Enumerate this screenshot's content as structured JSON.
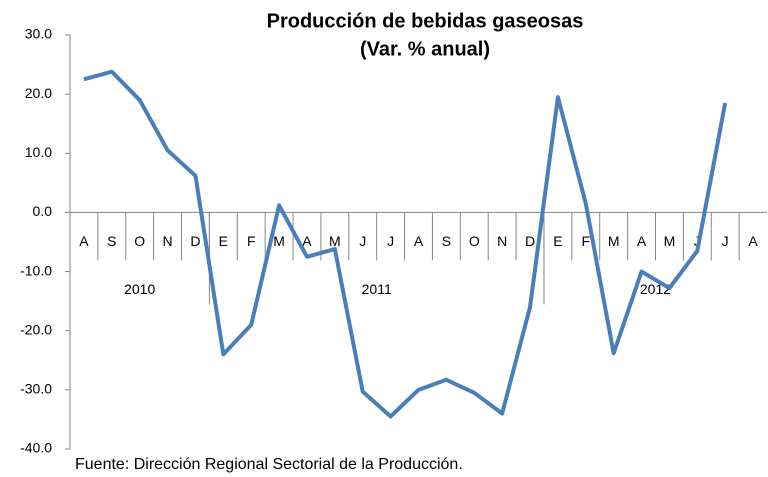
{
  "chart_data": {
    "type": "line",
    "title": [
      "Producción de bebidas gaseosas",
      "(Var. % anual)"
    ],
    "categories": [
      "A",
      "S",
      "O",
      "N",
      "D",
      "E",
      "F",
      "M",
      "A",
      "M",
      "J",
      "J",
      "A",
      "S",
      "O",
      "N",
      "D",
      "E",
      "F",
      "M",
      "A",
      "M",
      "J",
      "J",
      "A"
    ],
    "year_groups": [
      {
        "label": "2010",
        "count": 5
      },
      {
        "label": "2011",
        "count": 12
      },
      {
        "label": "2012",
        "count": 8
      }
    ],
    "series": [
      {
        "name": "Producción de bebidas gaseosas",
        "color": "#4a7ebb",
        "values": [
          22.5,
          23.8,
          19,
          10.5,
          6.2,
          -24,
          -19,
          1.2,
          -7.5,
          -6.2,
          -30.3,
          -34.5,
          -30,
          -28.3,
          -30.5,
          -34,
          -16,
          19.5,
          1.5,
          -23.8,
          -10,
          -12.8,
          -6.5,
          18.5,
          null
        ]
      }
    ],
    "ylim": [
      -40,
      30
    ],
    "yticks": [
      {
        "value": -40,
        "label": "-40.0"
      },
      {
        "value": -30,
        "label": "-30.0"
      },
      {
        "value": -20,
        "label": "-20.0"
      },
      {
        "value": -10,
        "label": "-10.0"
      },
      {
        "value": 0,
        "label": "0.0"
      },
      {
        "value": 10,
        "label": "10.0"
      },
      {
        "value": 20,
        "label": "20.0"
      },
      {
        "value": 30,
        "label": "30.0"
      }
    ],
    "grid": false,
    "source": "Fuente: Dirección Regional Sectorial de la Producción."
  }
}
